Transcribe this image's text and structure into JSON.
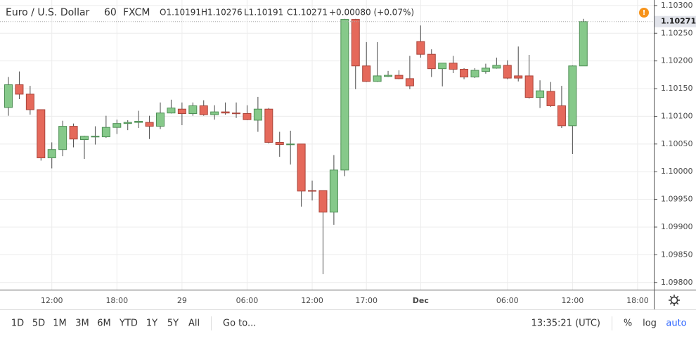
{
  "header": {
    "title": "Euro / U.S. Dollar",
    "interval": "60",
    "source": "FXCM",
    "ohlc": [
      "O1.10191",
      "H1.10276",
      "L1.10191",
      "C1.10271"
    ],
    "change": "+0.00080 (+0.07%)",
    "alert_icon": "!"
  },
  "chart_data": {
    "type": "candlestick",
    "categories": [
      null,
      null,
      null,
      null,
      "12:00",
      null,
      null,
      null,
      null,
      null,
      "18:00",
      null,
      null,
      null,
      null,
      null,
      "29",
      null,
      null,
      null,
      null,
      null,
      "06:00",
      null,
      null,
      null,
      null,
      null,
      "12:00",
      null,
      null,
      null,
      null,
      "17:00",
      null,
      null,
      null,
      null,
      "Dec",
      null,
      null,
      null,
      null,
      null,
      null,
      null,
      "06:00",
      null,
      null,
      null,
      null,
      null,
      "12:00",
      null,
      null,
      null,
      null,
      null,
      "18:00"
    ],
    "open": [
      1.10116,
      1.10157,
      1.1014,
      1.10112,
      1.10025,
      1.1004,
      1.10082,
      1.10058,
      1.10063,
      1.10063,
      1.1008,
      1.10087,
      1.10089,
      1.10089,
      1.10082,
      1.10106,
      1.10113,
      1.10105,
      1.10119,
      1.10103,
      1.10108,
      1.10106,
      1.10105,
      1.10093,
      1.10113,
      1.10053,
      1.10049,
      1.1005,
      1.09966,
      1.09966,
      1.09927,
      1.10003,
      1.10275,
      1.10191,
      1.10163,
      1.10172,
      1.10174,
      1.10168,
      1.10235,
      1.10212,
      1.10186,
      1.10196,
      1.10185,
      1.10171,
      1.10181,
      1.10187,
      1.10192,
      1.10173,
      1.10173,
      1.10134,
      1.10145,
      1.10119,
      1.10083,
      1.10191,
      null,
      null,
      null,
      null,
      null
    ],
    "high": [
      1.10171,
      1.10181,
      1.10155,
      1.10112,
      1.10053,
      1.10092,
      1.10087,
      1.10065,
      1.10082,
      1.10101,
      1.10094,
      1.10093,
      1.1011,
      1.10101,
      1.10125,
      1.1013,
      1.10125,
      1.10125,
      1.10129,
      1.1012,
      1.10125,
      1.10125,
      1.1012,
      1.10135,
      1.10115,
      1.10072,
      1.10074,
      1.1005,
      1.09984,
      1.09966,
      1.1003,
      1.10276,
      1.10276,
      1.10234,
      1.10234,
      1.10182,
      1.10183,
      1.10209,
      1.10264,
      1.10221,
      1.10196,
      1.10209,
      1.10187,
      1.10187,
      1.10195,
      1.10206,
      1.10201,
      1.10226,
      1.10211,
      1.10165,
      1.10162,
      1.10155,
      1.10192,
      1.10276,
      null,
      null,
      null,
      null,
      null
    ],
    "low": [
      1.10101,
      1.10131,
      1.10103,
      1.1002,
      1.10006,
      1.10028,
      1.10044,
      1.10023,
      1.10049,
      1.10061,
      1.10068,
      1.10075,
      1.10079,
      1.10059,
      1.10077,
      1.10105,
      1.10084,
      1.10101,
      1.10101,
      1.10094,
      1.10103,
      1.10097,
      1.10093,
      1.10072,
      1.10051,
      1.10027,
      1.10013,
      1.09937,
      1.09948,
      1.09815,
      1.09904,
      1.09992,
      1.10149,
      1.10162,
      1.10162,
      1.10171,
      1.10167,
      1.10149,
      1.10206,
      1.10171,
      1.10154,
      1.10178,
      1.10167,
      1.10169,
      1.10177,
      1.10186,
      1.10167,
      1.10163,
      1.10132,
      1.10115,
      1.10117,
      1.10079,
      1.10032,
      1.10191,
      null,
      null,
      null,
      null,
      null
    ],
    "close": [
      1.10157,
      1.1014,
      1.10112,
      1.10025,
      1.1004,
      1.10082,
      1.10059,
      1.10064,
      1.10064,
      1.1008,
      1.10087,
      1.10089,
      1.10091,
      1.10082,
      1.10106,
      1.10115,
      1.10105,
      1.10119,
      1.10103,
      1.10108,
      1.10106,
      1.10105,
      1.10094,
      1.10113,
      1.10053,
      1.10049,
      1.1005,
      1.09965,
      1.09965,
      1.09927,
      1.10003,
      1.10275,
      1.10191,
      1.10163,
      1.10173,
      1.10174,
      1.10168,
      1.10155,
      1.10212,
      1.10186,
      1.10196,
      1.10185,
      1.10171,
      1.10183,
      1.10187,
      1.10192,
      1.10169,
      1.10169,
      1.10134,
      1.10146,
      1.10119,
      1.10083,
      1.10191,
      1.10271,
      null,
      null,
      null,
      null,
      null
    ],
    "up_color": "#86c98a",
    "up_border": "#4e8f55",
    "down_color": "#e5695b",
    "down_border": "#a9443a",
    "ylim": [
      1.09787,
      1.1031
    ],
    "yticks": [
      {
        "value": 1.098,
        "label": "1.09800"
      },
      {
        "value": 1.0985,
        "label": "1.09850"
      },
      {
        "value": 1.099,
        "label": "1.09900"
      },
      {
        "value": 1.0995,
        "label": "1.09950"
      },
      {
        "value": 1.1,
        "label": "1.10000"
      },
      {
        "value": 1.1005,
        "label": "1.10050"
      },
      {
        "value": 1.101,
        "label": "1.10100"
      },
      {
        "value": 1.1015,
        "label": "1.10150"
      },
      {
        "value": 1.102,
        "label": "1.10200"
      },
      {
        "value": 1.1025,
        "label": "1.10250"
      },
      {
        "value": 1.103,
        "label": "1.10300"
      }
    ],
    "price_label": {
      "value": 1.10271,
      "label": "1.10271"
    },
    "grid": true
  },
  "toolbar": {
    "ranges": [
      "1D",
      "5D",
      "1M",
      "3M",
      "6M",
      "YTD",
      "1Y",
      "5Y",
      "All"
    ],
    "goto": "Go to...",
    "clock": "13:35:21 (UTC)",
    "percent": "%",
    "log": "log",
    "auto": "auto"
  }
}
